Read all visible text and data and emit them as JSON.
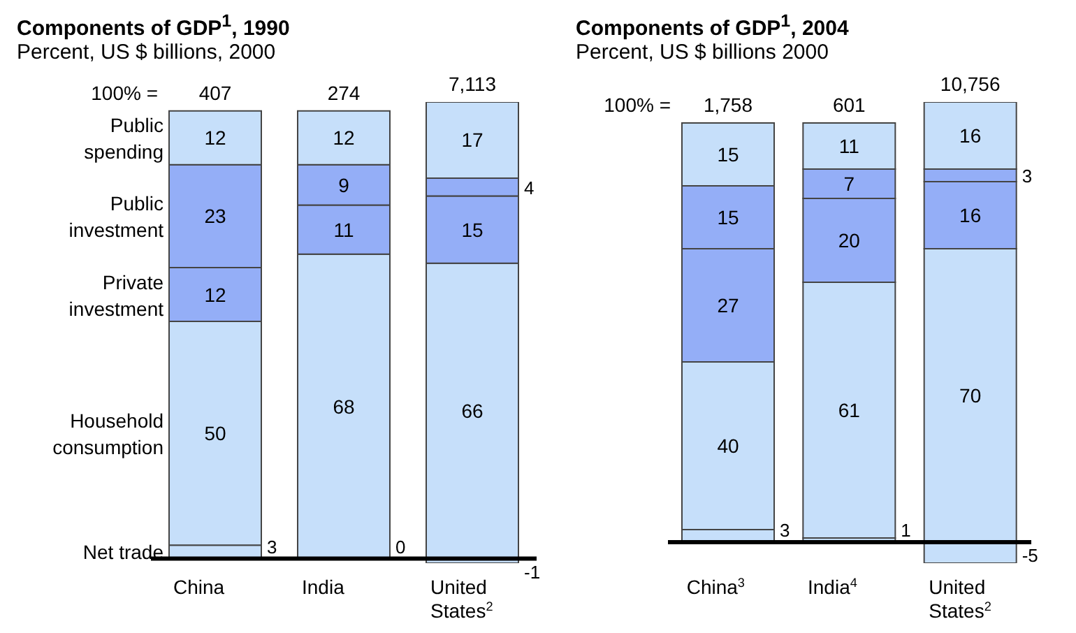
{
  "chart_data": [
    {
      "type": "bar",
      "title": "Components of GDP$^{1}$, 1990",
      "subtitle": "Percent, US $ billions, 2000",
      "categories": [
        "China",
        "India",
        "United States$^{2}$"
      ],
      "stacked": true,
      "data_labels": true,
      "legend": "left",
      "annotations": [
        "100% =",
        "407",
        "274",
        "7,113"
      ],
      "series": [
        {
          "name": "Net trade",
          "color": "#c6dffa",
          "values": [
            3,
            0,
            -1
          ]
        },
        {
          "name": "Household consumption",
          "color": "#c6dffa",
          "values": [
            50,
            68,
            66
          ]
        },
        {
          "name": "Private investment",
          "color": "#94aef7",
          "values": [
            12,
            11,
            15
          ]
        },
        {
          "name": "Public investment",
          "color": "#94aef7",
          "values": [
            23,
            9,
            4
          ]
        },
        {
          "name": "Public spending",
          "color": "#c6dffa",
          "values": [
            12,
            12,
            17
          ]
        }
      ]
    },
    {
      "type": "bar",
      "title": "Components of GDP$^{1}$, 2004",
      "subtitle": "Percent, US $ billions 2000",
      "categories": [
        "China$^{3}$",
        "India$^{4}$",
        "United States$^{2}$"
      ],
      "stacked": true,
      "data_labels": true,
      "annotations": [
        "100% =",
        "1,758",
        "601",
        "10,756"
      ],
      "series": [
        {
          "color": "#c6dffa",
          "values": [
            3,
            1,
            -5
          ]
        },
        {
          "color": "#c6dffa",
          "values": [
            40,
            61,
            70
          ]
        },
        {
          "color": "#94aef7",
          "values": [
            27,
            20,
            16
          ]
        },
        {
          "color": "#94aef7",
          "values": [
            15,
            7,
            3
          ]
        },
        {
          "color": "#c6dffa",
          "values": [
            15,
            11,
            16
          ]
        }
      ]
    }
  ]
}
